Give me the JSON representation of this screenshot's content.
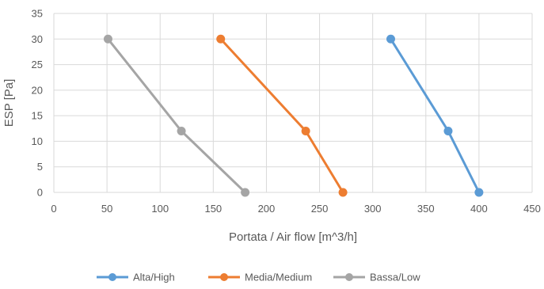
{
  "chart_data": {
    "type": "scatter",
    "title": "",
    "xlabel": "Portata / Air flow [m^3/h]",
    "ylabel": "ESP [Pa]",
    "xlim": [
      0,
      450
    ],
    "ylim": [
      0,
      35
    ],
    "xticks": [
      0,
      50,
      100,
      150,
      200,
      250,
      300,
      350,
      400,
      450
    ],
    "yticks": [
      0,
      5,
      10,
      15,
      20,
      25,
      30,
      35
    ],
    "grid": true,
    "legend_position": "bottom",
    "series": [
      {
        "name": "Alta/High",
        "color": "#5B9BD5",
        "points": [
          {
            "x": 317,
            "y": 30
          },
          {
            "x": 371,
            "y": 12
          },
          {
            "x": 400,
            "y": 0
          }
        ]
      },
      {
        "name": "Media/Medium",
        "color": "#ED7D31",
        "points": [
          {
            "x": 157,
            "y": 30
          },
          {
            "x": 237,
            "y": 12
          },
          {
            "x": 272,
            "y": 0
          }
        ]
      },
      {
        "name": "Bassa/Low",
        "color": "#A5A5A5",
        "points": [
          {
            "x": 51,
            "y": 30
          },
          {
            "x": 120,
            "y": 12
          },
          {
            "x": 180,
            "y": 0
          }
        ]
      }
    ]
  }
}
